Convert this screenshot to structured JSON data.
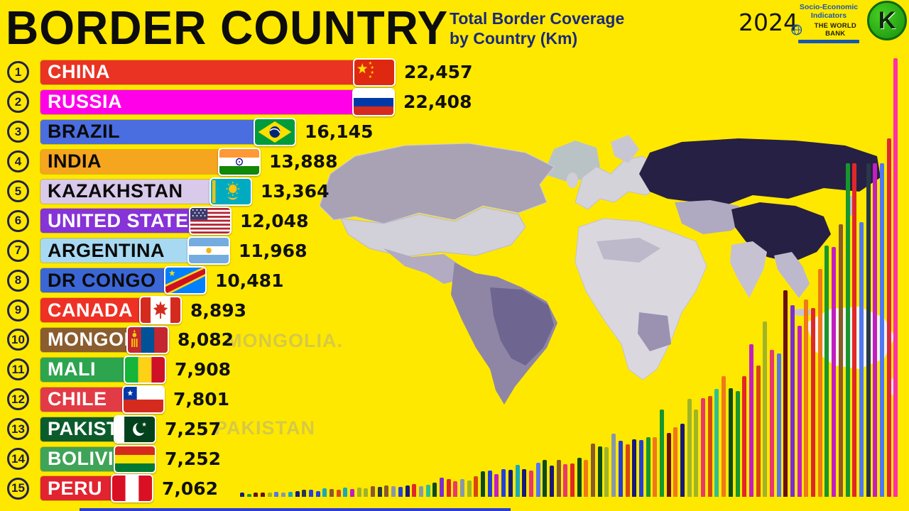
{
  "header": {
    "title": "BORDER COUNTRY",
    "subtitle_line1": "Total Border Coverage",
    "subtitle_line2": "by Country (Km)",
    "year": "2024",
    "worldbank": {
      "line1": "Socio-Economic",
      "line2": "Indicators",
      "name": "THE WORLD BANK"
    },
    "channel_logo_letter": "K"
  },
  "watermarks": [
    "MONGOLIA.",
    "PAKISTAN"
  ],
  "chart_data": {
    "type": "bar",
    "orientation": "horizontal",
    "title": "Total Border Coverage by Country (Km)",
    "year": "2024",
    "unit": "Km",
    "xlim": [
      0,
      22457
    ],
    "categories": [
      "CHINA",
      "RUSSIA",
      "BRAZIL",
      "INDIA",
      "KAZAKHSTAN",
      "UNITED STATES",
      "ARGENTINA",
      "DR CONGO",
      "CANADA",
      "MONGOLIA",
      "MALI",
      "CHILE",
      "PAKISTAN",
      "BOLIVIA",
      "PERU"
    ],
    "values": [
      22457,
      22408,
      16145,
      13888,
      13364,
      12048,
      11968,
      10481,
      8893,
      8082,
      7908,
      7801,
      7257,
      7252,
      7062
    ],
    "rows": [
      {
        "rank": 1,
        "country": "CHINA",
        "value": 22457,
        "value_label": "22,457",
        "bar_color": "#ea3323",
        "label_color": "#ffffff",
        "flag": "cn"
      },
      {
        "rank": 2,
        "country": "RUSSIA",
        "value": 22408,
        "value_label": "22,408",
        "bar_color": "#ff00e8",
        "label_color": "#ffffff",
        "flag": "ru"
      },
      {
        "rank": 3,
        "country": "BRAZIL",
        "value": 16145,
        "value_label": "16,145",
        "bar_color": "#4a6de0",
        "label_color": "#0a0a0a",
        "flag": "br"
      },
      {
        "rank": 4,
        "country": "INDIA",
        "value": 13888,
        "value_label": "13,888",
        "bar_color": "#f6a51f",
        "label_color": "#0a0a0a",
        "flag": "in"
      },
      {
        "rank": 5,
        "country": "KAZAKHSTAN",
        "value": 13364,
        "value_label": "13,364",
        "bar_color": "#d9c9ea",
        "label_color": "#0a0a0a",
        "flag": "kz"
      },
      {
        "rank": 6,
        "country": "UNITED STATES",
        "value": 12048,
        "value_label": "12,048",
        "bar_color": "#8633d7",
        "label_color": "#ffffff",
        "flag": "us"
      },
      {
        "rank": 7,
        "country": "ARGENTINA",
        "value": 11968,
        "value_label": "11,968",
        "bar_color": "#a8d9f2",
        "label_color": "#0a0a0a",
        "flag": "ar"
      },
      {
        "rank": 8,
        "country": "DR CONGO",
        "value": 10481,
        "value_label": "10,481",
        "bar_color": "#3b66d6",
        "label_color": "#0a0a0a",
        "flag": "cd"
      },
      {
        "rank": 9,
        "country": "CANADA",
        "value": 8893,
        "value_label": "8,893",
        "bar_color": "#ee3124",
        "label_color": "#ffffff",
        "flag": "ca"
      },
      {
        "rank": 10,
        "country": "MONGOLIA",
        "value": 8082,
        "value_label": "8,082",
        "bar_color": "#8a5c2e",
        "label_color": "#ffffff",
        "flag": "mn"
      },
      {
        "rank": 11,
        "country": "MALI",
        "value": 7908,
        "value_label": "7,908",
        "bar_color": "#2da44e",
        "label_color": "#ffffff",
        "flag": "ml"
      },
      {
        "rank": 12,
        "country": "CHILE",
        "value": 7801,
        "value_label": "7,801",
        "bar_color": "#e23b45",
        "label_color": "#ffffff",
        "flag": "cl"
      },
      {
        "rank": 13,
        "country": "PAKISTAN",
        "value": 7257,
        "value_label": "7,257",
        "bar_color": "#0b5c2c",
        "label_color": "#ffffff",
        "flag": "pk"
      },
      {
        "rank": 14,
        "country": "BOLIVIA",
        "value": 7252,
        "value_label": "7,252",
        "bar_color": "#3fa457",
        "label_color": "#ffffff",
        "flag": "bo"
      },
      {
        "rank": 15,
        "country": "PERU",
        "value": 7062,
        "value_label": "7,062",
        "bar_color": "#e1242f",
        "label_color": "#ffffff",
        "flag": "pe"
      }
    ]
  },
  "background_bars": {
    "count": 96,
    "tallest_color": "#ff2fa6",
    "second_tallest_color": "#e02838",
    "palette": [
      "#e02828",
      "#2540d8",
      "#18962e",
      "#7a2fd0",
      "#f07818",
      "#18aab8",
      "#1a1a78",
      "#c21ec2",
      "#8a5a2a",
      "#e8386e",
      "#0c4c1c",
      "#5078f0",
      "#a0b428",
      "#6a1010",
      "#283848",
      "#d84810",
      "#30c090",
      "#8898a8"
    ]
  },
  "map_colors": {
    "highlight": "#262044",
    "land_light": "#dad8de",
    "land_medium": "#a8a2b4",
    "land_dark": "#8f86a6",
    "brazil_patch": "#6e6590",
    "australia": "#f4f3ee"
  },
  "progress_color": "#2b3bd6"
}
